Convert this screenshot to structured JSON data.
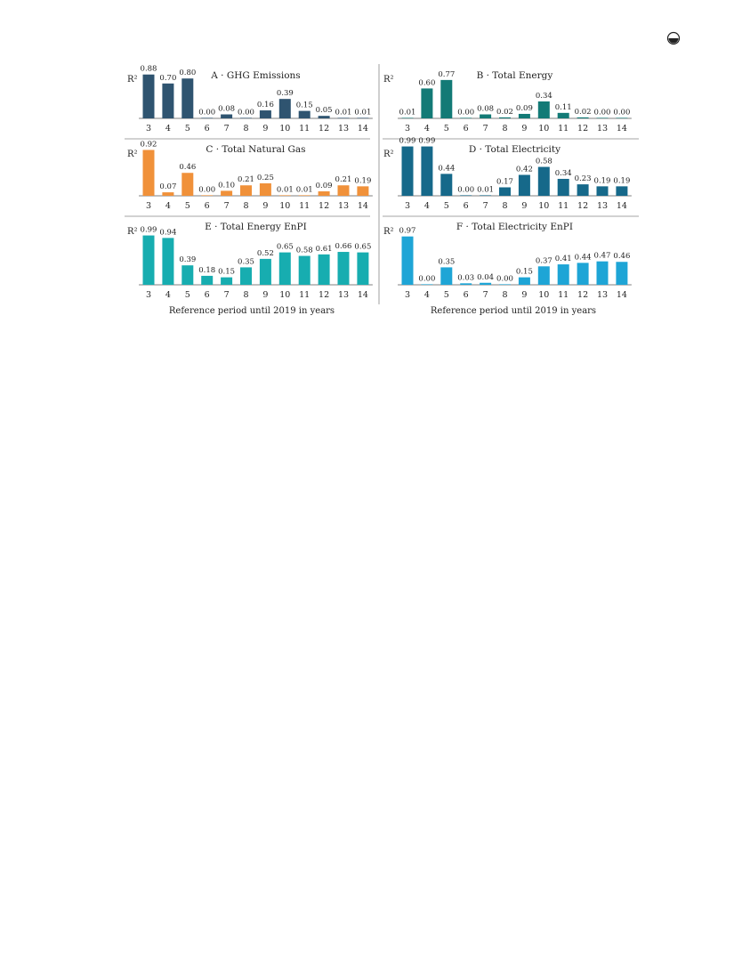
{
  "figure": {
    "xlabel": "Reference period until 2019 in years"
  },
  "chart_data": [
    {
      "type": "bar",
      "title": "A · GHG Emissions",
      "ylabel": "R²",
      "color": "#2f5470",
      "categories": [
        "3",
        "4",
        "5",
        "6",
        "7",
        "8",
        "9",
        "10",
        "11",
        "12",
        "13",
        "14"
      ],
      "values": [
        0.88,
        0.7,
        0.8,
        0.0,
        0.08,
        0.0,
        0.16,
        0.39,
        0.15,
        0.05,
        0.01,
        0.01
      ],
      "value_labels": [
        "0.88",
        "0.70",
        "0.80",
        "0.00",
        "0.08",
        "0.00",
        "0.16",
        "0.39",
        "0.15",
        "0.05",
        "0.01",
        "0.01"
      ],
      "ylim": [
        0,
        1
      ]
    },
    {
      "type": "bar",
      "title": "B · Total Energy",
      "ylabel": "R²",
      "color": "#137a76",
      "categories": [
        "3",
        "4",
        "5",
        "6",
        "7",
        "8",
        "9",
        "10",
        "11",
        "12",
        "13",
        "14"
      ],
      "values": [
        0.01,
        0.6,
        0.77,
        0.0,
        0.08,
        0.02,
        0.09,
        0.34,
        0.11,
        0.02,
        0.0,
        0.0
      ],
      "value_labels": [
        "0.01",
        "0.60",
        "0.77",
        "0.00",
        "0.08",
        "0.02",
        "0.09",
        "0.34",
        "0.11",
        "0.02",
        "0.00",
        "0.00"
      ],
      "ylim": [
        0,
        1
      ]
    },
    {
      "type": "bar",
      "title": "C · Total Natural Gas",
      "ylabel": "R²",
      "color": "#f0913a",
      "categories": [
        "3",
        "4",
        "5",
        "6",
        "7",
        "8",
        "9",
        "10",
        "11",
        "12",
        "13",
        "14"
      ],
      "values": [
        0.92,
        0.07,
        0.46,
        0.0,
        0.1,
        0.21,
        0.25,
        0.01,
        0.01,
        0.09,
        0.21,
        0.19
      ],
      "value_labels": [
        "0.92",
        "0.07",
        "0.46",
        "0.00",
        "0.10",
        "0.21",
        "0.25",
        "0.01",
        "0.01",
        "0.09",
        "0.21",
        "0.19"
      ],
      "ylim": [
        0,
        1
      ]
    },
    {
      "type": "bar",
      "title": "D · Total Electricity",
      "ylabel": "R²",
      "color": "#16698a",
      "categories": [
        "3",
        "4",
        "5",
        "6",
        "7",
        "8",
        "9",
        "10",
        "11",
        "12",
        "13",
        "14"
      ],
      "values": [
        0.99,
        0.99,
        0.44,
        0.0,
        0.01,
        0.17,
        0.42,
        0.58,
        0.34,
        0.23,
        0.19,
        0.19
      ],
      "value_labels": [
        "0.99",
        "0.99",
        "0.44",
        "0.00",
        "0.01",
        "0.17",
        "0.42",
        "0.58",
        "0.34",
        "0.23",
        "0.19",
        "0.19"
      ],
      "ylim": [
        0,
        1
      ]
    },
    {
      "type": "bar",
      "title": "E · Total Energy EnPI",
      "ylabel": "R²",
      "color": "#17adb0",
      "categories": [
        "3",
        "4",
        "5",
        "6",
        "7",
        "8",
        "9",
        "10",
        "11",
        "12",
        "13",
        "14"
      ],
      "values": [
        0.99,
        0.94,
        0.39,
        0.18,
        0.15,
        0.35,
        0.52,
        0.65,
        0.58,
        0.61,
        0.66,
        0.65
      ],
      "value_labels": [
        "0.99",
        "0.94",
        "0.39",
        "0.18",
        "0.15",
        "0.35",
        "0.52",
        "0.65",
        "0.58",
        "0.61",
        "0.66",
        "0.65"
      ],
      "ylim": [
        0,
        1
      ]
    },
    {
      "type": "bar",
      "title": "F · Total Electricity EnPI",
      "ylabel": "R²",
      "color": "#1ea5d6",
      "categories": [
        "3",
        "4",
        "5",
        "6",
        "7",
        "8",
        "9",
        "10",
        "11",
        "12",
        "13",
        "14"
      ],
      "values": [
        0.97,
        0.0,
        0.35,
        0.03,
        0.04,
        0.0,
        0.15,
        0.37,
        0.41,
        0.44,
        0.47,
        0.46
      ],
      "value_labels": [
        "0.97",
        "0.00",
        "0.35",
        "0.03",
        "0.04",
        "0.00",
        "0.15",
        "0.37",
        "0.41",
        "0.44",
        "0.47",
        "0.46"
      ],
      "ylim": [
        0,
        1
      ]
    }
  ]
}
